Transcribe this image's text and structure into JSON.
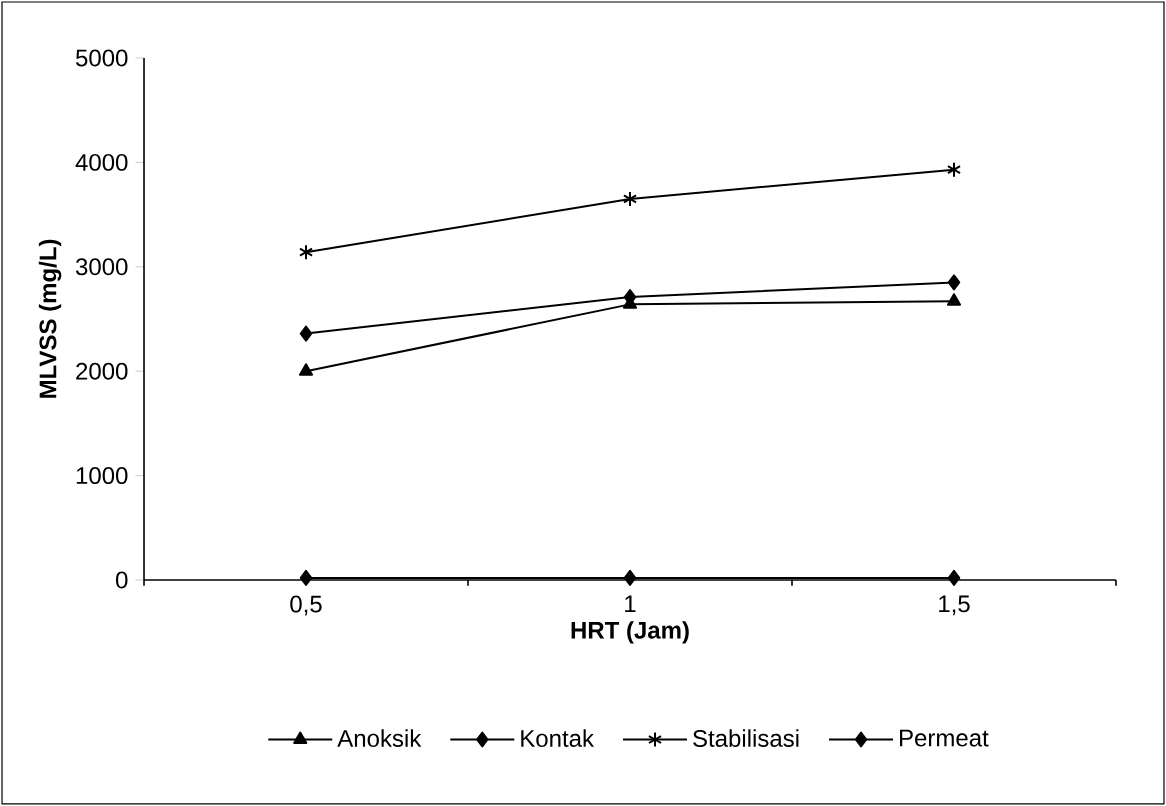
{
  "chart_data": {
    "type": "line",
    "xlabel": "HRT (Jam)",
    "ylabel": "MLVSS (mg/L)",
    "categories": [
      "0,5",
      "1",
      "1,5"
    ],
    "ylim": [
      0,
      5000
    ],
    "yticks": [
      0,
      1000,
      2000,
      3000,
      4000,
      5000
    ],
    "legend": "bottom",
    "line_style": "solid",
    "series": [
      {
        "name": "Anoksik",
        "color": "#000000",
        "marker": "triangle",
        "values": [
          2000,
          2640,
          2670
        ]
      },
      {
        "name": "Kontak",
        "color": "#000000",
        "marker": "diamond",
        "values": [
          2360,
          2710,
          2850
        ]
      },
      {
        "name": "Stabilisasi",
        "color": "#000000",
        "marker": "cross",
        "values": [
          3140,
          3650,
          3930
        ]
      },
      {
        "name": "Permeat",
        "color": "#000000",
        "marker": "diamond",
        "values": [
          20,
          20,
          20
        ]
      }
    ]
  }
}
